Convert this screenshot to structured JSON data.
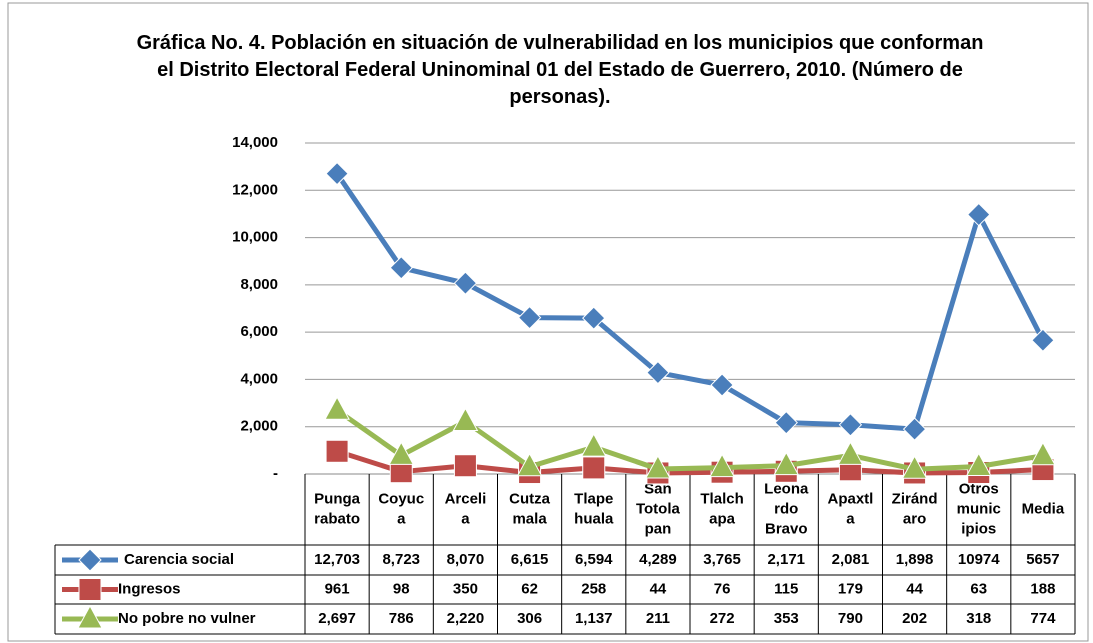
{
  "chart_data": {
    "type": "line",
    "title": "Gráfica No. 4. Población en situación de vulnerabilidad en los municipios que conforman el Distrito Electoral Federal Uninominal 01 del Estado de Guerrero, 2010. (Número de personas).",
    "categories": [
      "Punga rabato",
      "Coyuc a",
      "Arceli a",
      "Cutza mala",
      "Tlape huala",
      "San Totola pan",
      "Tlalch apa",
      "Leona rdo Bravo",
      "Apaxtl a",
      "Ziránd aro",
      "Otros munic ipios",
      "Media"
    ],
    "series": [
      {
        "name": "Carencia social",
        "color": "#4a7ebb",
        "marker": "diamond",
        "values": [
          12703,
          8723,
          8070,
          6615,
          6594,
          4289,
          3765,
          2171,
          2081,
          1898,
          10974,
          5657
        ],
        "value_labels": [
          "12,703",
          "8,723",
          "8,070",
          "6,615",
          "6,594",
          "4,289",
          "3,765",
          "2,171",
          "2,081",
          "1,898",
          "10974",
          "5657"
        ]
      },
      {
        "name": "Ingresos",
        "color": "#be4b48",
        "marker": "square",
        "values": [
          961,
          98,
          350,
          62,
          258,
          44,
          76,
          115,
          179,
          44,
          63,
          188
        ]
      },
      {
        "name": "No pobre  no vulner",
        "color": "#98b954",
        "marker": "triangle",
        "values": [
          2697,
          786,
          2220,
          306,
          1137,
          211,
          272,
          353,
          790,
          202,
          318,
          774
        ],
        "value_labels": [
          "2,697",
          "786",
          "2,220",
          "306",
          "1,137",
          "211",
          "272",
          "353",
          "790",
          "202",
          "318",
          "774"
        ]
      }
    ],
    "ylim": [
      0,
      14000
    ],
    "yticks": [
      {
        "value": 0,
        "label": "-"
      },
      {
        "value": 2000,
        "label": "2,000"
      },
      {
        "value": 4000,
        "label": "4,000"
      },
      {
        "value": 6000,
        "label": "6,000"
      },
      {
        "value": 8000,
        "label": "8,000"
      },
      {
        "value": 10000,
        "label": "10,000"
      },
      {
        "value": 12000,
        "label": "12,000"
      },
      {
        "value": 14000,
        "label": "14,000"
      }
    ],
    "grid": true
  }
}
